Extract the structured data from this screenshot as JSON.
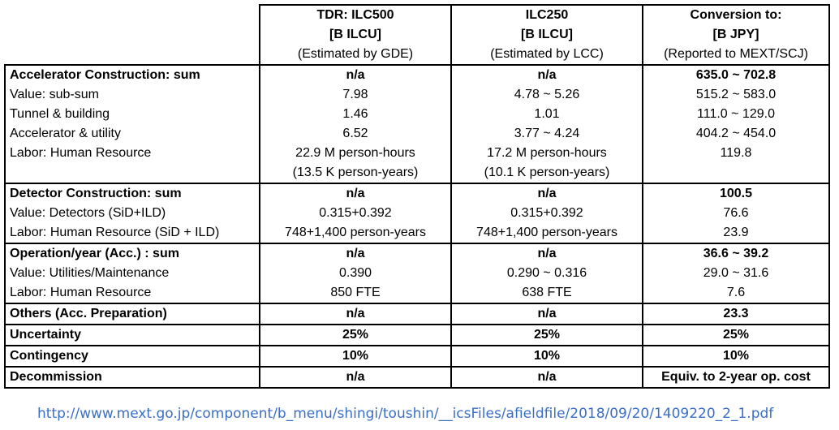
{
  "header": {
    "col1": {
      "line1": "TDR: ILC500",
      "line2": "[B ILCU]",
      "line3": "(Estimated by GDE)"
    },
    "col2": {
      "line1": "ILC250",
      "line2": "[B ILCU]",
      "line3": "(Estimated by LCC)"
    },
    "col3": {
      "line1": "Conversion to:",
      "line2": "[B JPY]",
      "line3": "(Reported to MEXT/SCJ)"
    }
  },
  "rows": [
    {
      "label": "Accelerator Construction: sum",
      "tdr": "n/a",
      "ilc250": "n/a",
      "jpy": "635.0 ~ 702.8"
    },
    {
      "label": "Value: sub-sum",
      "tdr": "7.98",
      "ilc250": "4.78 ~ 5.26",
      "jpy": "515.2 ~ 583.0"
    },
    {
      "label": "Tunnel & building",
      "tdr": "1.46",
      "ilc250": "1.01",
      "jpy": "111.0 ~ 129.0"
    },
    {
      "label": "Accelerator & utility",
      "tdr": "6.52",
      "ilc250": "3.77 ~ 4.24",
      "jpy": "404.2 ~ 454.0"
    },
    {
      "label": "Labor: Human Resource",
      "tdr": "22.9 M person-hours",
      "tdr2": "(13.5 K person-years)",
      "ilc250": "17.2 M person-hours",
      "ilc2502": "(10.1 K person-years)",
      "jpy": "119.8"
    },
    {
      "label": "Detector Construction: sum",
      "tdr": "n/a",
      "ilc250": "n/a",
      "jpy": "100.5"
    },
    {
      "label": "Value: Detectors (SiD+ILD)",
      "tdr": "0.315+0.392",
      "ilc250": "0.315+0.392",
      "jpy": "76.6"
    },
    {
      "label": "Labor: Human Resource (SiD + ILD)",
      "tdr": "748+1,400 person-years",
      "ilc250": "748+1,400 person-years",
      "jpy": "23.9"
    },
    {
      "label": "Operation/year (Acc.) : sum",
      "tdr": "n/a",
      "ilc250": "n/a",
      "jpy": "36.6 ~ 39.2"
    },
    {
      "label": "Value: Utilities/Maintenance",
      "tdr": "0.390",
      "ilc250": "0.290 ~ 0.316",
      "jpy": "29.0 ~ 31.6"
    },
    {
      "label": "Labor: Human Resource",
      "tdr": "850 FTE",
      "ilc250": "638 FTE",
      "jpy": "7.6"
    },
    {
      "label": "Others (Acc. Preparation)",
      "tdr": "n/a",
      "ilc250": "n/a",
      "jpy": "23.3"
    },
    {
      "label": "Uncertainty",
      "tdr": "25%",
      "ilc250": "25%",
      "jpy": "25%"
    },
    {
      "label": "Contingency",
      "tdr": "10%",
      "ilc250": "10%",
      "jpy": "10%"
    },
    {
      "label": "Decommission",
      "tdr": "n/a",
      "ilc250": "n/a",
      "jpy": "Equiv. to 2-year op. cost"
    }
  ],
  "source_url": "http://www.mext.go.jp/component/b_menu/shingi/toushin/__icsFiles/afieldfile/2018/09/20/1409220_2_1.pdf"
}
